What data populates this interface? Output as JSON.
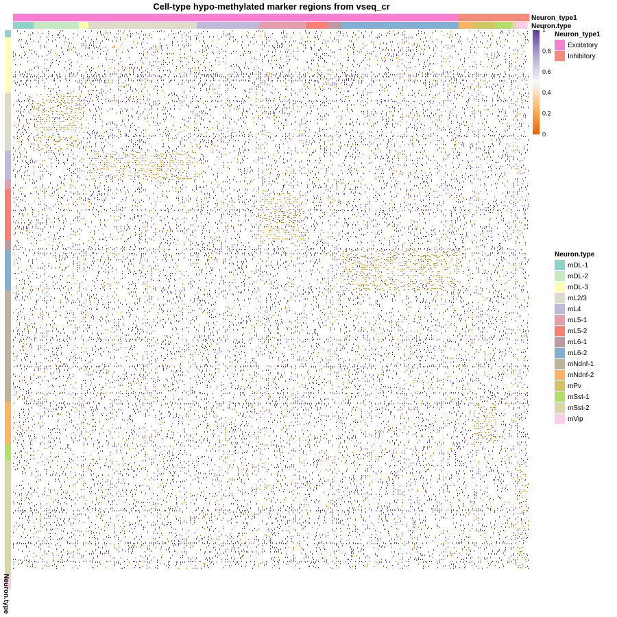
{
  "chart_data": {
    "type": "heatmap",
    "title": "Cell-type hypo-methylated marker regions from vseq_cr",
    "column_annotations": [
      {
        "name": "Neuron_type1",
        "blocks": [
          {
            "label": "Excitatory",
            "fraction": 0.862
          },
          {
            "label": "Inhibitory",
            "fraction": 0.138
          }
        ]
      },
      {
        "name": "Neuron.type",
        "blocks": [
          {
            "label": "mDL-1",
            "fraction": 0.04
          },
          {
            "label": "mDL-2",
            "fraction": 0.088
          },
          {
            "label": "mDL-3",
            "fraction": 0.018
          },
          {
            "label": "mL2/3",
            "fraction": 0.21
          },
          {
            "label": "mL4",
            "fraction": 0.12
          },
          {
            "label": "mL5-1",
            "fraction": 0.092
          },
          {
            "label": "mL5-2",
            "fraction": 0.042
          },
          {
            "label": "mL6-1",
            "fraction": 0.026
          },
          {
            "label": "mL6-2",
            "fraction": 0.226
          },
          {
            "label": "mNdnf-1",
            "fraction": 0.003
          },
          {
            "label": "mNdnf-2",
            "fraction": 0.025
          },
          {
            "label": "mPv",
            "fraction": 0.043
          },
          {
            "label": "mSst-1",
            "fraction": 0.032
          },
          {
            "label": "mSst-2",
            "fraction": 0.009
          },
          {
            "label": "mVip",
            "fraction": 0.022
          }
        ]
      }
    ],
    "row_annotation": {
      "name": "Neuron.type",
      "blocks": [
        {
          "label": "mDL-1",
          "fraction": 0.013
        },
        {
          "label": "mDL-3",
          "fraction": 0.103
        },
        {
          "label": "mL2/3",
          "fraction": 0.107
        },
        {
          "label": "mL4",
          "fraction": 0.053
        },
        {
          "label": "mL5-1",
          "fraction": 0.018
        },
        {
          "label": "mL5-2",
          "fraction": 0.094
        },
        {
          "label": "mL6-1",
          "fraction": 0.019
        },
        {
          "label": "mL6-2",
          "fraction": 0.076
        },
        {
          "label": "mNdnf-1",
          "fraction": 0.206
        },
        {
          "label": "mNdnf-2",
          "fraction": 0.077
        },
        {
          "label": "mSst-1",
          "fraction": 0.031
        },
        {
          "label": "mSst-2",
          "fraction": 0.216
        },
        {
          "label": "mVip",
          "fraction": 0.022
        }
      ]
    },
    "colorbar": {
      "ticks": [
        0,
        0.2,
        0.4,
        0.6,
        0.8,
        1
      ],
      "tick_labels": [
        "0",
        "0.2",
        "0.4",
        "0.6",
        "0.8",
        "1"
      ],
      "range": [
        0,
        1
      ],
      "stops": [
        "#e66101",
        "#fdb863",
        "#f7f7f7",
        "#b2abd2",
        "#5e3c99"
      ]
    },
    "hypo_blocks": [
      {
        "row": "mL2/3",
        "column": "mDL-2"
      },
      {
        "row": "mL4",
        "column": "mL2/3"
      },
      {
        "row": "mL6-2",
        "column": "mL6-2"
      },
      {
        "row": "mL5-2",
        "column": "mL5-1"
      },
      {
        "row": "mNdnf-2",
        "column": "mPv"
      },
      {
        "row": "mSst-2",
        "column": "mVip"
      }
    ],
    "legends": [
      {
        "title": "Neuron_type1",
        "entries": [
          {
            "label": "Excitatory",
            "color": "#f77fd1"
          },
          {
            "label": "Inhibitory",
            "color": "#f08c79"
          }
        ]
      },
      {
        "title": "Neuron.type",
        "entries": [
          {
            "label": "mDL-1",
            "color": "#8dd3c7"
          },
          {
            "label": "mDL-2",
            "color": "#c7e9c0"
          },
          {
            "label": "mDL-3",
            "color": "#ffffb3"
          },
          {
            "label": "mL2/3",
            "color": "#dedbc8"
          },
          {
            "label": "mL4",
            "color": "#bebada"
          },
          {
            "label": "mL5-1",
            "color": "#e3a0ac"
          },
          {
            "label": "mL5-2",
            "color": "#fb8072"
          },
          {
            "label": "mL6-1",
            "color": "#bc9aa2"
          },
          {
            "label": "mL6-2",
            "color": "#80b1d3"
          },
          {
            "label": "mNdnf-1",
            "color": "#bdb39b"
          },
          {
            "label": "mNdnf-2",
            "color": "#fdb462"
          },
          {
            "label": "mPv",
            "color": "#d2c365"
          },
          {
            "label": "mSst-1",
            "color": "#b3de69"
          },
          {
            "label": "mSst-2",
            "color": "#d9d6a8"
          },
          {
            "label": "mVip",
            "color": "#fccde5"
          }
        ]
      }
    ]
  }
}
